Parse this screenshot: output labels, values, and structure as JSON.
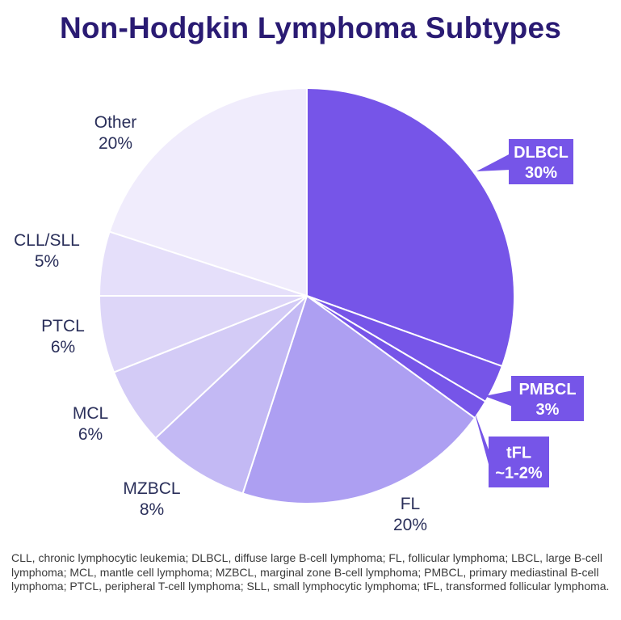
{
  "chart_data": {
    "type": "pie",
    "title": "Non-Hodgkin Lymphoma Subtypes",
    "slices": [
      {
        "label": "DLBCL",
        "value_label": "30%",
        "value": 30.5,
        "color": "#7655e8",
        "callout": true
      },
      {
        "label": "PMBCL",
        "value_label": "3%",
        "value": 3,
        "color": "#7655e8",
        "callout": true
      },
      {
        "label": "tFL",
        "value_label": "~1-2%",
        "value": 1.5,
        "color": "#7655e8",
        "callout": true
      },
      {
        "label": "FL",
        "value_label": "20%",
        "value": 20,
        "color": "#ad9ff2",
        "callout": false
      },
      {
        "label": "MZBCL",
        "value_label": "8%",
        "value": 8,
        "color": "#c3b9f4",
        "callout": false
      },
      {
        "label": "MCL",
        "value_label": "6%",
        "value": 6,
        "color": "#d3cbf6",
        "callout": false
      },
      {
        "label": "PTCL",
        "value_label": "6%",
        "value": 6,
        "color": "#ddd6f8",
        "callout": false
      },
      {
        "label": "CLL/SLL",
        "value_label": "5%",
        "value": 5,
        "color": "#e5dffa",
        "callout": false
      },
      {
        "label": "Other",
        "value_label": "20%",
        "value": 20,
        "color": "#f0ecfc",
        "callout": false
      }
    ],
    "start": "top",
    "direction": "clockwise"
  },
  "footnote": "CLL, chronic lymphocytic leukemia; DLBCL, diffuse large B-cell lymphoma; FL, follicular lymphoma; LBCL, large B-cell lymphoma; MCL, mantle cell lymphoma; MZBCL, marginal zone B-cell lymphoma; PMBCL, primary mediastinal B-cell lymphoma; PTCL, peripheral T-cell lymphoma; SLL, small lymphocytic lymphoma; tFL, transformed follicular lymphoma."
}
